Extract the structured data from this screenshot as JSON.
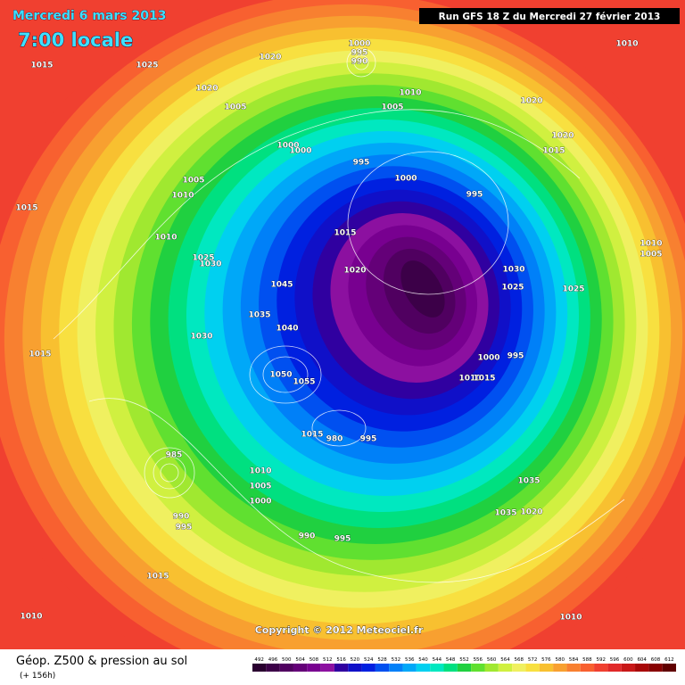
{
  "header": {
    "date": "Mercredi 6 mars 2013",
    "time": "7:00 locale",
    "run": "Run GFS 18 Z du Mercredi 27 février 2013"
  },
  "footer": {
    "title": "Géop. Z500 & pression au sol",
    "lead": "(+ 156h)",
    "copyright": "Copyright © 2012 Meteociel.fr"
  },
  "legend": {
    "values": [
      492,
      496,
      500,
      504,
      508,
      512,
      516,
      520,
      524,
      528,
      532,
      536,
      540,
      544,
      548,
      552,
      556,
      560,
      564,
      568,
      572,
      576,
      580,
      584,
      588,
      592,
      596,
      600,
      604,
      608,
      612
    ],
    "colors": [
      "#2a0030",
      "#3c0048",
      "#500060",
      "#640078",
      "#780090",
      "#8c10a0",
      "#3000a0",
      "#1010c8",
      "#0020e0",
      "#0050f0",
      "#0080f8",
      "#00a8f8",
      "#00d0f0",
      "#00e8c0",
      "#00e080",
      "#20d040",
      "#60e030",
      "#a0e830",
      "#d0f040",
      "#f0f060",
      "#f8e040",
      "#f8c030",
      "#f8a030",
      "#f88030",
      "#f86030",
      "#f04030",
      "#e02828",
      "#c81818",
      "#a80808",
      "#880000",
      "#600000"
    ]
  },
  "isobar_labels": [
    "1015",
    "1025",
    "1020",
    "1000",
    "995",
    "990",
    "1010",
    "1020",
    "1005",
    "1010",
    "1005",
    "1020",
    "1020",
    "1015",
    "1000",
    "1000",
    "995",
    "1000",
    "995",
    "1005",
    "1010",
    "1015",
    "1010",
    "1015",
    "1010",
    "1005",
    "1025",
    "1030",
    "1020",
    "1030",
    "1045",
    "1025",
    "1025",
    "1035",
    "1040",
    "1030",
    "1015",
    "1000",
    "995",
    "1050",
    "1055",
    "1010",
    "1015",
    "1015",
    "980",
    "995",
    "1035",
    "1010",
    "1005",
    "1000",
    "985",
    "990",
    "995",
    "990",
    "995",
    "1035",
    "1020",
    "1015",
    "1010",
    "1010"
  ]
}
